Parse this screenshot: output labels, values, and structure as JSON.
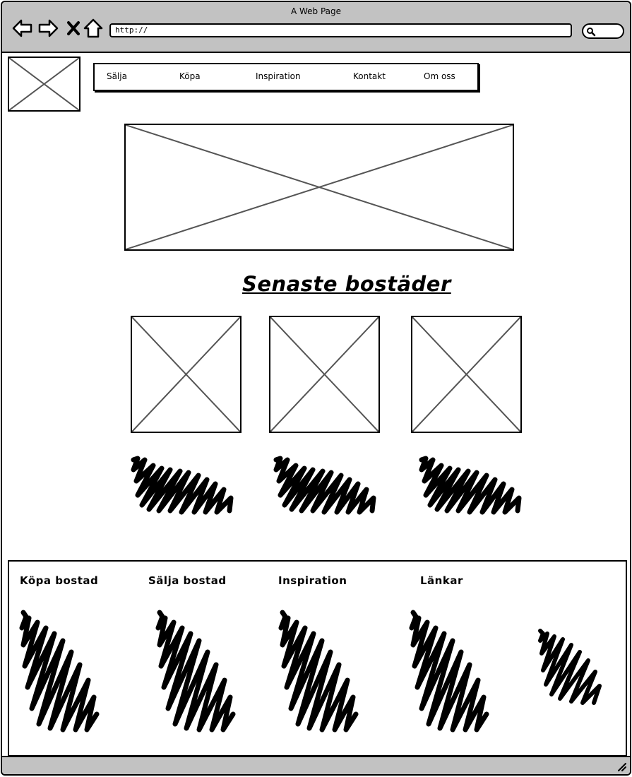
{
  "window": {
    "title": "A Web Page"
  },
  "browser": {
    "url": "http://",
    "icons": [
      "back-arrow-icon",
      "forward-arrow-icon",
      "close-x-icon",
      "home-icon",
      "search-icon"
    ]
  },
  "nav": {
    "items": [
      {
        "label": "Sälja"
      },
      {
        "label": "Köpa"
      },
      {
        "label": "Inspiration"
      },
      {
        "label": "Kontakt"
      },
      {
        "label": "Om oss"
      }
    ]
  },
  "main": {
    "heading": "Senaste bostäder"
  },
  "footer": {
    "columns": [
      {
        "title": "Köpa bostad"
      },
      {
        "title": "Sälja bostad"
      },
      {
        "title": "Inspiration"
      },
      {
        "title": "Länkar"
      }
    ]
  },
  "colors": {
    "chrome": "#c2c2c2",
    "ink": "#000000",
    "placeholder_stroke": "#555555"
  }
}
